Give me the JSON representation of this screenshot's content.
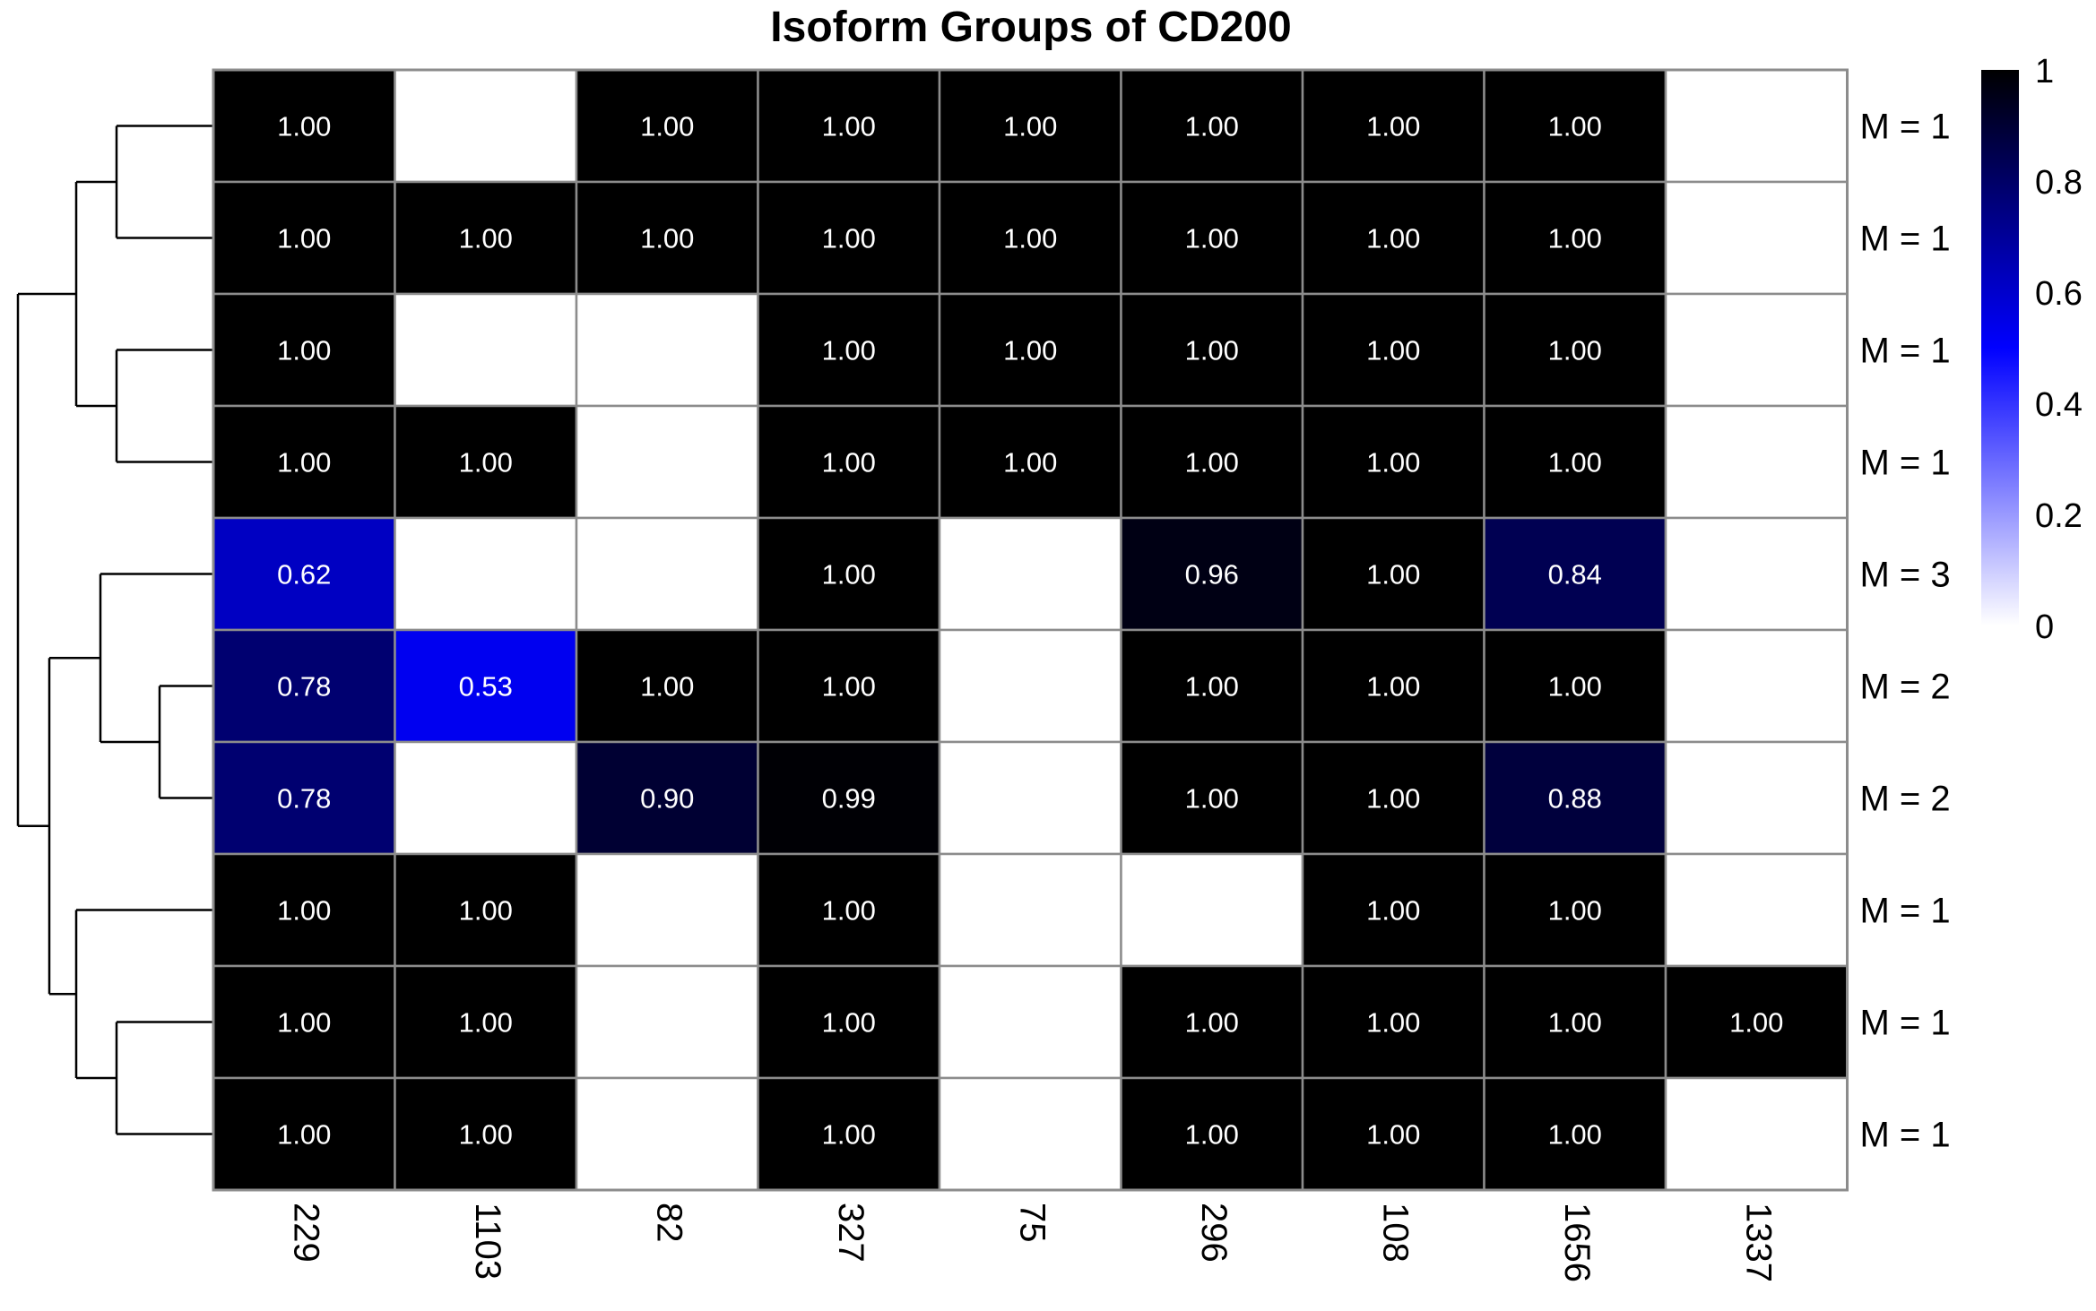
{
  "chart_data": {
    "type": "heatmap",
    "title": "Isoform Groups of CD200",
    "columns": [
      "229",
      "1103",
      "82",
      "327",
      "75",
      "296",
      "108",
      "1656",
      "1337"
    ],
    "rows": [
      "M = 1",
      "M = 1",
      "M = 1",
      "M = 1",
      "M = 3",
      "M = 2",
      "M = 2",
      "M = 1",
      "M = 1",
      "M = 1"
    ],
    "values": [
      [
        1.0,
        null,
        1.0,
        1.0,
        1.0,
        1.0,
        1.0,
        1.0,
        null
      ],
      [
        1.0,
        1.0,
        1.0,
        1.0,
        1.0,
        1.0,
        1.0,
        1.0,
        null
      ],
      [
        1.0,
        null,
        null,
        1.0,
        1.0,
        1.0,
        1.0,
        1.0,
        null
      ],
      [
        1.0,
        1.0,
        null,
        1.0,
        1.0,
        1.0,
        1.0,
        1.0,
        null
      ],
      [
        0.62,
        null,
        null,
        1.0,
        null,
        0.96,
        1.0,
        0.84,
        null
      ],
      [
        0.78,
        0.53,
        1.0,
        1.0,
        null,
        1.0,
        1.0,
        1.0,
        null
      ],
      [
        0.78,
        null,
        0.9,
        0.99,
        null,
        1.0,
        1.0,
        0.88,
        null
      ],
      [
        1.0,
        1.0,
        null,
        1.0,
        null,
        null,
        1.0,
        1.0,
        null
      ],
      [
        1.0,
        1.0,
        null,
        1.0,
        null,
        1.0,
        1.0,
        1.0,
        1.0
      ],
      [
        1.0,
        1.0,
        null,
        1.0,
        null,
        1.0,
        1.0,
        1.0,
        null
      ]
    ],
    "value_format": "0.00",
    "color_scale": {
      "min": 0,
      "mid": 0.5,
      "max": 1,
      "colors": [
        "#ffffff",
        "#0000ff",
        "#000000"
      ]
    },
    "legend": {
      "ticks": [
        "0",
        "0.2",
        "0.4",
        "0.6",
        "0.8",
        "1"
      ],
      "placement": "right"
    },
    "row_dendrogram": true,
    "grid": true
  }
}
